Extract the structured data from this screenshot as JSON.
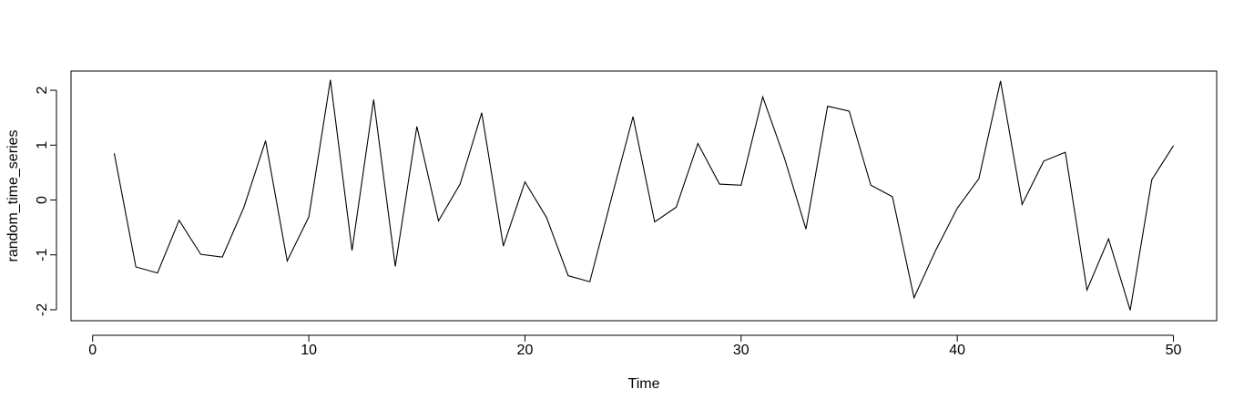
{
  "chart_data": {
    "type": "line",
    "title": "",
    "xlabel": "Time",
    "ylabel": "random_time_series",
    "xlim": [
      -1,
      52
    ],
    "ylim": [
      -2.2,
      2.35
    ],
    "xticks": [
      0,
      10,
      20,
      30,
      40,
      50
    ],
    "yticks": [
      -2,
      -1,
      0,
      1,
      2
    ],
    "grid": false,
    "series": [
      {
        "x": [
          1,
          2,
          3,
          4,
          5,
          6,
          7,
          8,
          9,
          10,
          11,
          12,
          13,
          14,
          15,
          16,
          17,
          18,
          19,
          20,
          21,
          22,
          23,
          24,
          25,
          26,
          27,
          28,
          29,
          30,
          31,
          32,
          33,
          34,
          35,
          36,
          37,
          38,
          39,
          40,
          41,
          42,
          43,
          44,
          45,
          46,
          47,
          48,
          49,
          50
        ],
        "values": [
          0.85,
          -1.22,
          -1.33,
          -0.37,
          -0.99,
          -1.04,
          -0.13,
          1.08,
          -1.11,
          -0.31,
          2.19,
          -0.92,
          1.83,
          -1.21,
          1.34,
          -0.38,
          0.29,
          1.59,
          -0.84,
          0.33,
          -0.32,
          -1.38,
          -1.49,
          0.03,
          1.52,
          -0.4,
          -0.13,
          1.03,
          0.29,
          0.27,
          1.88,
          0.77,
          -0.53,
          1.71,
          1.62,
          0.27,
          0.06,
          -1.78,
          -0.92,
          -0.15,
          0.39,
          2.17,
          -0.08,
          0.71,
          0.87,
          -1.64,
          -0.71,
          -2.01,
          0.37,
          0.99
        ]
      }
    ]
  }
}
